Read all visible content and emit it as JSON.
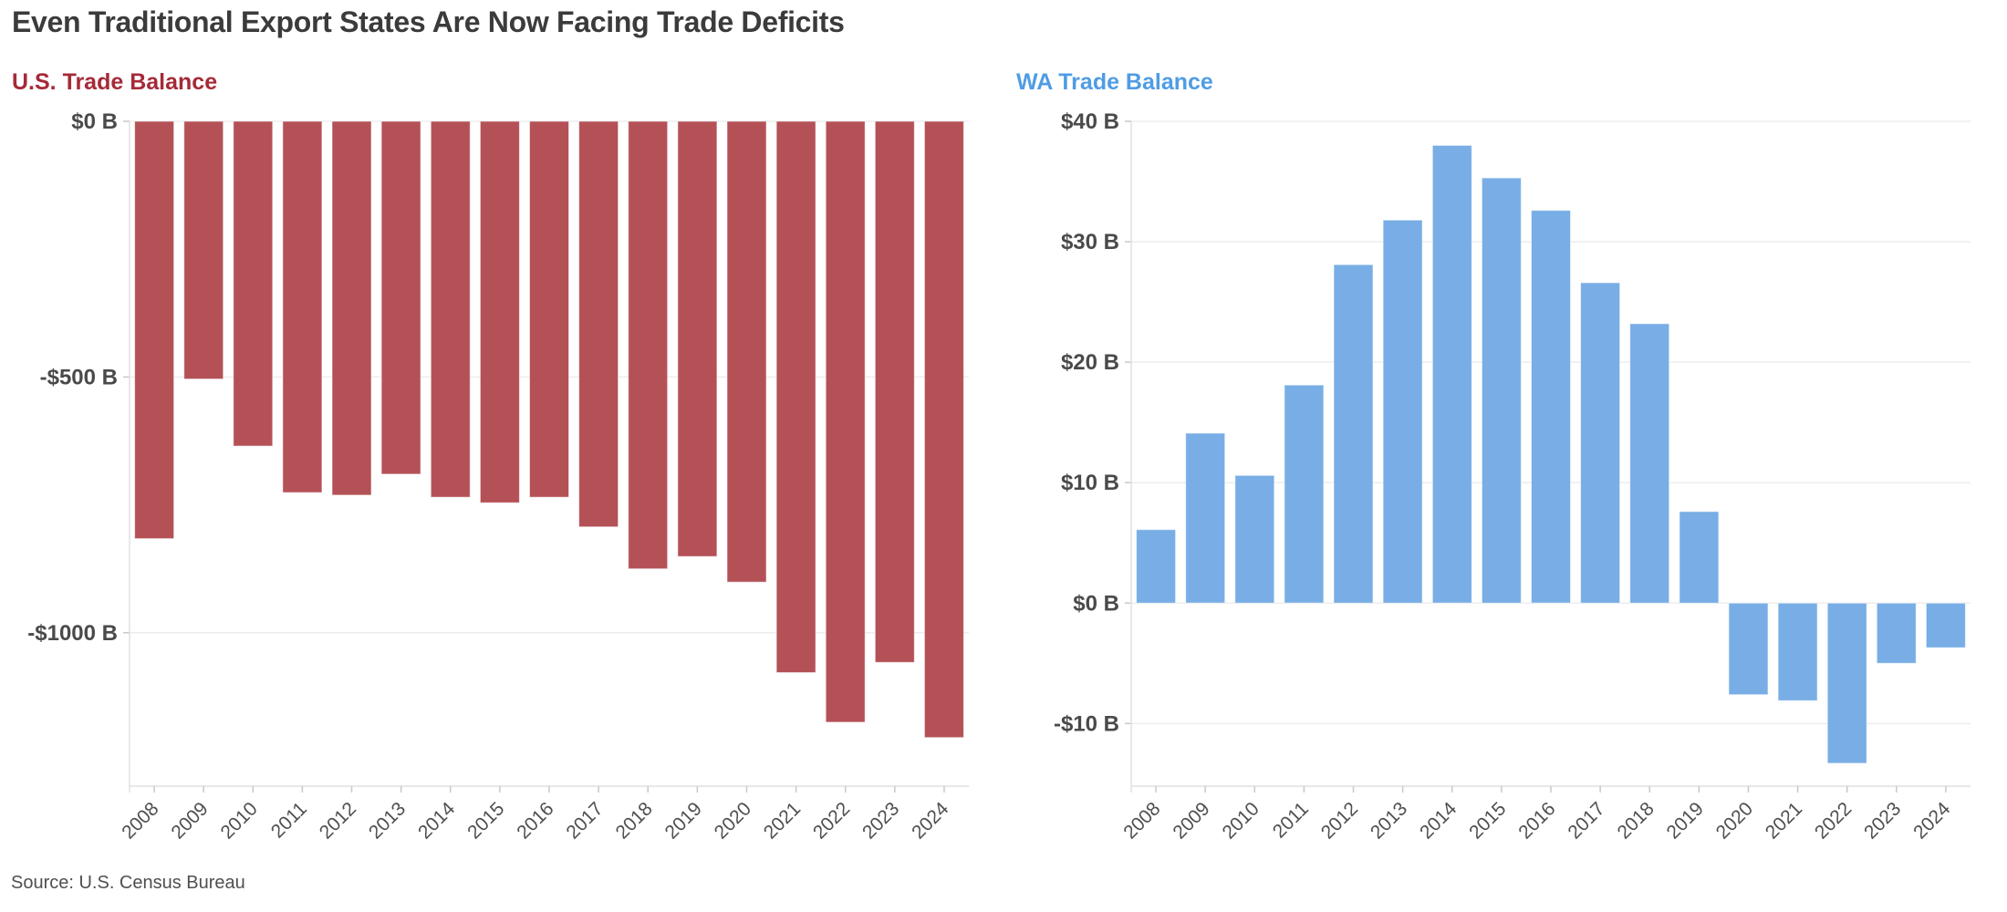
{
  "title": "Even Traditional Export States Are Now Facing Trade Deficits",
  "source": "Source: U.S. Census Bureau",
  "colors": {
    "title_text": "#3b3b3b",
    "us_accent": "#a52a38",
    "wa_accent": "#4f9ce4",
    "us_bar": "#b45157",
    "wa_bar": "#78aee5",
    "gridline": "#ededed",
    "axis_line": "#e0e0e0",
    "tick_mark": "#c9c9c9",
    "y_label_text": "#4a4a4a",
    "x_label_text": "#4f4f4f",
    "source_text": "#4f4f4f"
  },
  "chart_data": [
    {
      "type": "bar",
      "title": "U.S. Trade Balance",
      "title_color": "#a52a38",
      "bar_color": "#b45157",
      "unit": "billions of US dollars",
      "categories": [
        "2008",
        "2009",
        "2010",
        "2011",
        "2012",
        "2013",
        "2014",
        "2015",
        "2016",
        "2017",
        "2018",
        "2019",
        "2020",
        "2021",
        "2022",
        "2023",
        "2024"
      ],
      "values": [
        -816,
        -504,
        -635,
        -726,
        -731,
        -690,
        -735,
        -746,
        -735,
        -793,
        -875,
        -851,
        -901,
        -1078,
        -1175,
        -1058,
        -1205
      ],
      "ylim": [
        -1300,
        0
      ],
      "yticks": [
        {
          "value": 0,
          "label": "$0 B"
        },
        {
          "value": -500,
          "label": "-$500 B"
        },
        {
          "value": -1000,
          "label": "-$1000 B"
        }
      ],
      "grid": true,
      "legend": false,
      "xlabel": "",
      "ylabel": ""
    },
    {
      "type": "bar",
      "title": "WA Trade Balance",
      "title_color": "#4f9ce4",
      "bar_color": "#78aee5",
      "unit": "billions of US dollars",
      "categories": [
        "2008",
        "2009",
        "2010",
        "2011",
        "2012",
        "2013",
        "2014",
        "2015",
        "2016",
        "2017",
        "2018",
        "2019",
        "2020",
        "2021",
        "2022",
        "2023",
        "2024"
      ],
      "values": [
        6.1,
        14.1,
        10.6,
        18.1,
        28.1,
        31.8,
        38.0,
        35.3,
        32.6,
        26.6,
        23.2,
        7.6,
        -7.6,
        -8.1,
        -13.3,
        -5.0,
        -3.7
      ],
      "ylim": [
        -15.2,
        40
      ],
      "yticks": [
        {
          "value": 40,
          "label": "$40 B"
        },
        {
          "value": 30,
          "label": "$30 B"
        },
        {
          "value": 20,
          "label": "$20 B"
        },
        {
          "value": 10,
          "label": "$10 B"
        },
        {
          "value": 0,
          "label": "$0 B"
        },
        {
          "value": -10,
          "label": "-$10 B"
        }
      ],
      "grid": true,
      "legend": false,
      "xlabel": "",
      "ylabel": ""
    }
  ]
}
